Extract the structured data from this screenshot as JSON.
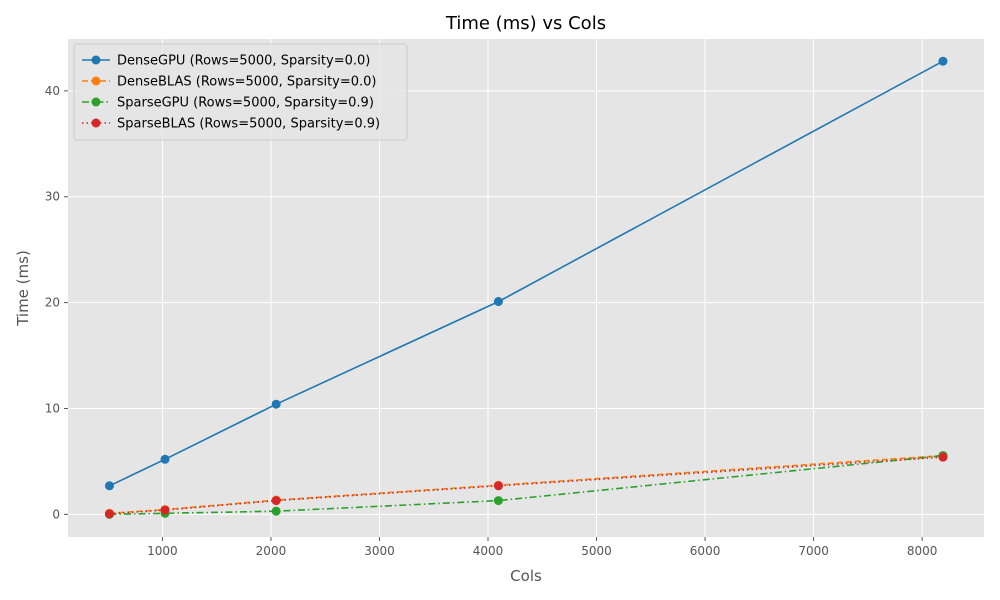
{
  "chart_data": {
    "type": "line",
    "title": "Time (ms) vs Cols",
    "xlabel": "Cols",
    "ylabel": "Time (ms)",
    "xlim": [
      130,
      8570
    ],
    "ylim": [
      -2.14,
      44.9
    ],
    "xticks": [
      1000,
      2000,
      3000,
      4000,
      5000,
      6000,
      7000,
      8000
    ],
    "yticks": [
      0,
      10,
      20,
      30,
      40
    ],
    "grid": true,
    "legend_position": "top-left",
    "x": [
      512,
      1024,
      2048,
      4096,
      8192
    ],
    "series": [
      {
        "name": "DenseGPU (Rows=5000, Sparsity=0.0)",
        "values": [
          2.7,
          5.2,
          10.4,
          20.1,
          42.8
        ],
        "color": "#1f77b4",
        "linestyle": "solid"
      },
      {
        "name": "DenseBLAS (Rows=5000, Sparsity=0.0)",
        "values": [
          0.1,
          0.45,
          1.35,
          2.75,
          5.55
        ],
        "color": "#ff7f0e",
        "linestyle": "dashed"
      },
      {
        "name": "SparseGPU (Rows=5000, Sparsity=0.9)",
        "values": [
          0.0,
          0.1,
          0.3,
          1.3,
          5.55
        ],
        "color": "#2ca02c",
        "linestyle": "dashdot"
      },
      {
        "name": "SparseBLAS (Rows=5000, Sparsity=0.9)",
        "values": [
          0.05,
          0.4,
          1.3,
          2.7,
          5.4
        ],
        "color": "#d62728",
        "linestyle": "dotted"
      }
    ]
  },
  "style": {
    "plot_background": "#e5e5e5",
    "grid_color": "#ffffff"
  }
}
